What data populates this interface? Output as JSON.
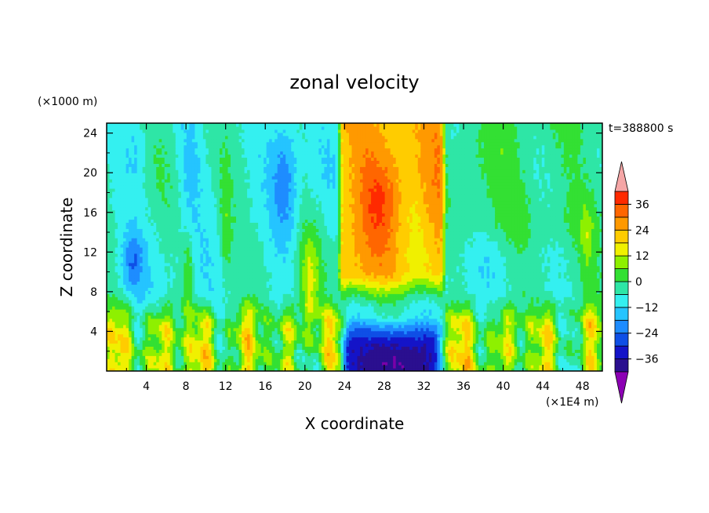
{
  "chart_data": {
    "type": "heatmap",
    "title": "zonal velocity",
    "xlabel": "X coordinate",
    "ylabel": "Z coordinate",
    "x_unit": "(×1E4 m)",
    "y_unit": "(×1000 m)",
    "time_label": "t=388800 s",
    "xlim": [
      0,
      50
    ],
    "ylim": [
      0,
      25
    ],
    "x_ticks": [
      "4",
      "8",
      "12",
      "16",
      "20",
      "24",
      "28",
      "32",
      "36",
      "40",
      "44",
      "48"
    ],
    "y_ticks": [
      "4",
      "8",
      "12",
      "16",
      "20",
      "24"
    ],
    "colorbar": {
      "labels": [
        "36",
        "24",
        "12",
        "0",
        "−12",
        "−24",
        "−36"
      ],
      "levels": [
        -42,
        -36,
        -30,
        -24,
        -18,
        -12,
        -6,
        0,
        6,
        12,
        18,
        24,
        30,
        36,
        42
      ],
      "colors": [
        "#7a00a8",
        "#2a0f8f",
        "#1414c8",
        "#0f4fe6",
        "#1e8cff",
        "#25c4ff",
        "#34f0f0",
        "#2ee6a6",
        "#33e033",
        "#8ef000",
        "#f0f000",
        "#ffcc00",
        "#ff9900",
        "#ff6600",
        "#ff2a00",
        "#f5a6a6"
      ],
      "over_color": "#f5a6a6",
      "under_color": "#8c00b4"
    },
    "field_description_regions": [
      {
        "x": [
          23.5,
          34
        ],
        "z": [
          7,
          25
        ],
        "value": 30
      },
      {
        "x": [
          24,
          33.5
        ],
        "z": [
          0,
          3
        ],
        "value": -36
      },
      {
        "x": [
          16.5,
          19.5
        ],
        "z": [
          12,
          25
        ],
        "value": -20
      },
      {
        "x": [
          0.5,
          4
        ],
        "z": [
          8.5,
          12.5
        ],
        "value": -20
      },
      {
        "x": [
          34,
          50
        ],
        "z": [
          12,
          25
        ],
        "value": -2
      },
      {
        "x": [
          0,
          50
        ],
        "z": [
          0,
          4
        ],
        "value": 8
      }
    ]
  }
}
